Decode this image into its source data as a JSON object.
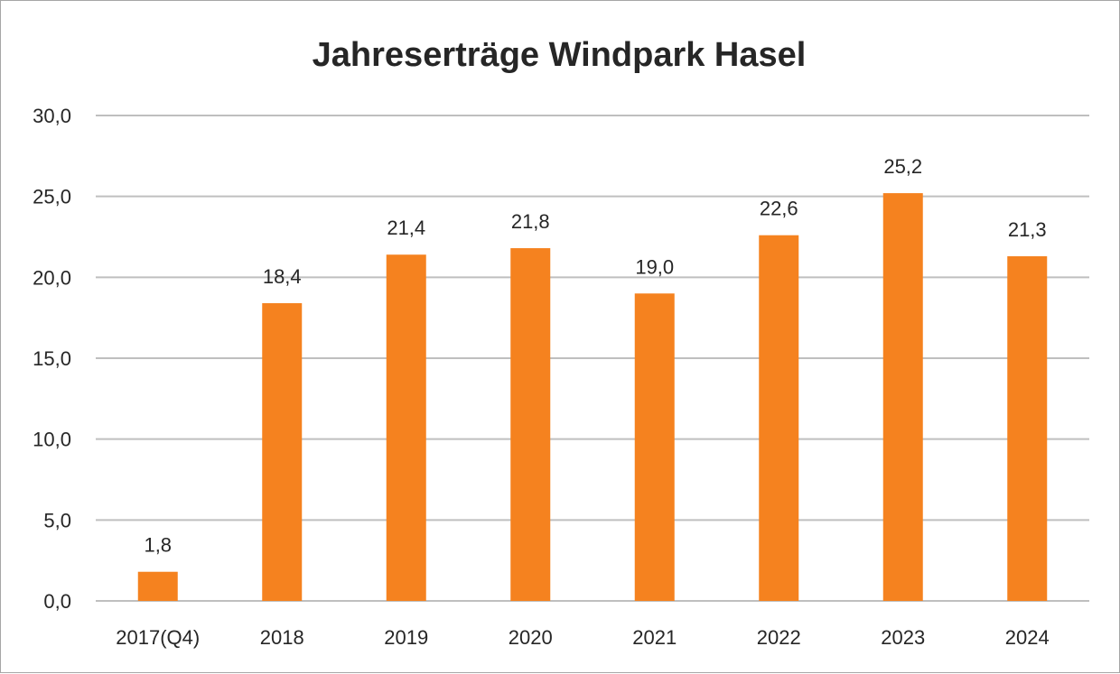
{
  "chart_data": {
    "type": "bar",
    "title": "Jahreserträge Windpark Hasel",
    "xlabel": "",
    "ylabel": "",
    "categories": [
      "2017(Q4)",
      "2018",
      "2019",
      "2020",
      "2021",
      "2022",
      "2023",
      "2024"
    ],
    "values": [
      1.8,
      18.4,
      21.4,
      21.8,
      19.0,
      22.6,
      25.2,
      21.3
    ],
    "value_labels": [
      "1,8",
      "18,4",
      "21,4",
      "21,8",
      "19,0",
      "22,6",
      "25,2",
      "21,3"
    ],
    "ylim": [
      0,
      30
    ],
    "yticks": [
      0,
      5,
      10,
      15,
      20,
      25,
      30
    ],
    "ytick_labels": [
      "0,0",
      "5,0",
      "10,0",
      "15,0",
      "20,0",
      "25,0",
      "30,0"
    ],
    "bar_color": "#f5821f",
    "grid": true,
    "legend": "none"
  }
}
